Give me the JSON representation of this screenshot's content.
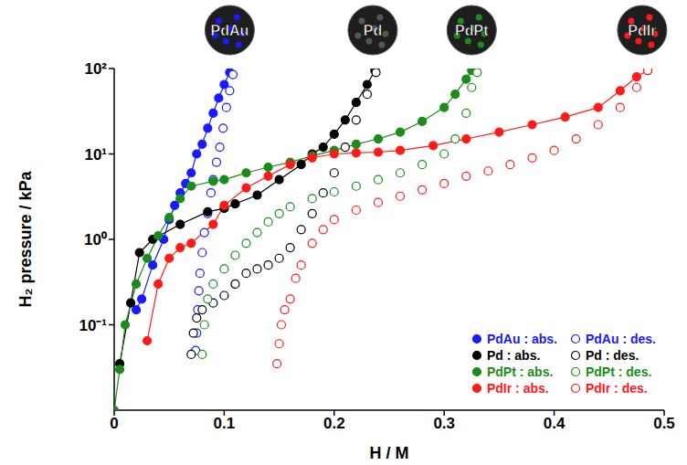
{
  "chart_data": {
    "type": "scatter",
    "xlabel": "H / M",
    "ylabel": "H₂ pressure / kPa",
    "log": "y",
    "grid": false,
    "legend": "lower right",
    "xlim": [
      0,
      0.5
    ],
    "xticks": [
      0,
      0.1,
      0.2,
      0.3,
      0.4,
      0.5
    ],
    "ylim": [
      0.01,
      100
    ],
    "yticks": [
      {
        "value": 0.1,
        "label": "10⁻¹"
      },
      {
        "value": 1,
        "label": "10⁰"
      },
      {
        "value": 10,
        "label": "10¹"
      },
      {
        "value": 100,
        "label": "10²"
      }
    ],
    "annotations": [
      {
        "text": "PdAu",
        "x": 0.105,
        "color": "#1a1aff"
      },
      {
        "text": "Pd",
        "x": 0.235,
        "color": "#555555"
      },
      {
        "text": "PdPt",
        "x": 0.325,
        "color": "#1a8c1a"
      },
      {
        "text": "PdIr",
        "x": 0.48,
        "color": "#ff1a1a"
      }
    ],
    "series": [
      {
        "name": "PdAu : abs.",
        "color": "#1a1aff",
        "marker": "filled",
        "line_style": "solid",
        "x": [
          0.02,
          0.025,
          0.035,
          0.045,
          0.05,
          0.055,
          0.06,
          0.065,
          0.07,
          0.075,
          0.08,
          0.085,
          0.09,
          0.095,
          0.1,
          0.105
        ],
        "values": [
          0.15,
          0.2,
          0.5,
          1.0,
          1.7,
          2.5,
          3.5,
          4.5,
          6,
          10,
          13,
          20,
          30,
          45,
          65,
          90
        ]
      },
      {
        "name": "PdAu : des.",
        "color": "#1a1aff",
        "marker": "open",
        "line_style": "none",
        "x": [
          0.074,
          0.075,
          0.076,
          0.077,
          0.078,
          0.08,
          0.082,
          0.085,
          0.088,
          0.09,
          0.093,
          0.096,
          0.099,
          0.102,
          0.105,
          0.108
        ],
        "values": [
          0.05,
          0.08,
          0.15,
          0.25,
          0.4,
          0.7,
          1.2,
          2,
          3.5,
          5,
          8,
          12,
          20,
          35,
          55,
          85
        ]
      },
      {
        "name": "Pd : abs.",
        "color": "#000000",
        "marker": "filled",
        "line_style": "solid",
        "x": [
          0.005,
          0.015,
          0.023,
          0.035,
          0.06,
          0.085,
          0.1,
          0.11,
          0.13,
          0.15,
          0.17,
          0.18,
          0.19,
          0.2,
          0.21,
          0.22,
          0.23,
          0.237
        ],
        "values": [
          0.035,
          0.18,
          0.7,
          1.0,
          1.5,
          2.1,
          2.3,
          2.6,
          3.3,
          5,
          7.5,
          10,
          12,
          17,
          25,
          40,
          65,
          95
        ]
      },
      {
        "name": "Pd : des.",
        "color": "#000000",
        "marker": "open",
        "line_style": "none",
        "x": [
          0.07,
          0.072,
          0.075,
          0.08,
          0.09,
          0.1,
          0.11,
          0.12,
          0.13,
          0.14,
          0.15,
          0.16,
          0.17,
          0.18,
          0.19,
          0.2,
          0.21,
          0.22,
          0.23,
          0.238
        ],
        "values": [
          0.045,
          0.08,
          0.12,
          0.15,
          0.18,
          0.22,
          0.3,
          0.4,
          0.45,
          0.5,
          0.6,
          0.8,
          1.3,
          2,
          3.5,
          6,
          12,
          25,
          50,
          90
        ]
      },
      {
        "name": "PdPt : abs.",
        "color": "#1a8c1a",
        "marker": "filled",
        "line_style": "solid",
        "x": [
          0,
          0.005,
          0.01,
          0.02,
          0.03,
          0.04,
          0.05,
          0.06,
          0.07,
          0.09,
          0.1,
          0.12,
          0.14,
          0.16,
          0.18,
          0.2,
          0.22,
          0.24,
          0.26,
          0.28,
          0.3,
          0.31,
          0.32,
          0.325
        ],
        "values": [
          0.01,
          0.03,
          0.1,
          0.3,
          0.6,
          1.1,
          1.8,
          3,
          4.2,
          4.8,
          5,
          6,
          7,
          8,
          9.5,
          11,
          13,
          15,
          18,
          24,
          35,
          50,
          75,
          95
        ]
      },
      {
        "name": "PdPt : des.",
        "color": "#1a8c1a",
        "marker": "open",
        "line_style": "none",
        "x": [
          0.08,
          0.082,
          0.085,
          0.09,
          0.1,
          0.11,
          0.12,
          0.13,
          0.14,
          0.15,
          0.16,
          0.18,
          0.2,
          0.22,
          0.24,
          0.26,
          0.28,
          0.3,
          0.31,
          0.32,
          0.325,
          0.33
        ],
        "values": [
          0.045,
          0.1,
          0.2,
          0.3,
          0.45,
          0.65,
          0.9,
          1.2,
          1.6,
          2,
          2.4,
          3,
          3.6,
          4.2,
          5,
          6,
          7.5,
          10,
          15,
          30,
          60,
          90
        ]
      },
      {
        "name": "PdIr : abs.",
        "color": "#ff1a1a",
        "marker": "filled",
        "line_style": "solid",
        "x": [
          0.03,
          0.04,
          0.05,
          0.06,
          0.07,
          0.09,
          0.1,
          0.12,
          0.14,
          0.16,
          0.18,
          0.2,
          0.22,
          0.24,
          0.26,
          0.29,
          0.32,
          0.35,
          0.38,
          0.41,
          0.44,
          0.46,
          0.475,
          0.485
        ],
        "values": [
          0.065,
          0.3,
          0.6,
          0.8,
          0.9,
          1.5,
          2.5,
          4,
          5.5,
          7.5,
          9,
          10,
          10.3,
          10.5,
          11,
          12.5,
          15,
          18,
          22,
          27,
          35,
          55,
          80,
          95
        ]
      },
      {
        "name": "PdIr : des.",
        "color": "#ff1a1a",
        "marker": "open",
        "line_style": "none",
        "x": [
          0.148,
          0.15,
          0.152,
          0.155,
          0.16,
          0.165,
          0.17,
          0.18,
          0.19,
          0.2,
          0.22,
          0.24,
          0.26,
          0.28,
          0.3,
          0.32,
          0.34,
          0.36,
          0.38,
          0.4,
          0.42,
          0.44,
          0.46,
          0.475,
          0.485
        ],
        "values": [
          0.035,
          0.06,
          0.1,
          0.15,
          0.2,
          0.35,
          0.5,
          0.9,
          1.3,
          1.7,
          2.2,
          2.7,
          3.2,
          3.8,
          4.5,
          5.5,
          6.3,
          7.5,
          9,
          11,
          15,
          22,
          35,
          60,
          95
        ]
      }
    ]
  }
}
